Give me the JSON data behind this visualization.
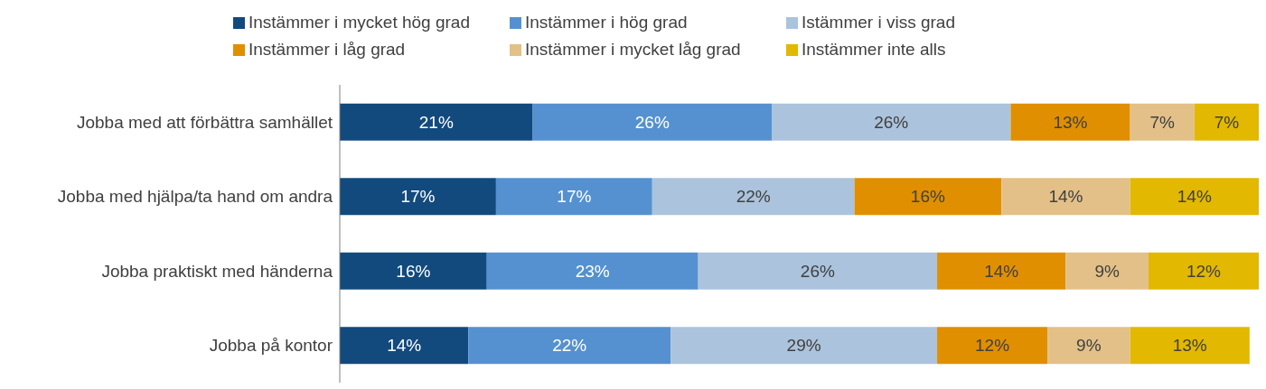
{
  "chart_data": {
    "type": "bar",
    "orientation": "horizontal",
    "stacked": true,
    "data_labels": true,
    "legend": "top",
    "tick_labels": "y",
    "categories": [
      "Jobba med att förbättra samhället",
      "Jobba med hjälpa/ta hand om andra",
      "Jobba praktiskt med händerna",
      "Jobba på kontor"
    ],
    "xlim": [
      0,
      100
    ],
    "series": [
      {
        "name": "Instämmer i mycket hög grad",
        "color": "#124a7e",
        "values": [
          21,
          17,
          16,
          14
        ],
        "value_labels": [
          "21%",
          "17%",
          "16%",
          "14%"
        ]
      },
      {
        "name": "Instämmer i hög grad",
        "color": "#5591d0",
        "values": [
          26,
          17,
          23,
          22
        ],
        "value_labels": [
          "26%",
          "17%",
          "23%",
          "22%"
        ]
      },
      {
        "name": "Istämmer i viss grad",
        "color": "#abc3dc",
        "values": [
          26,
          22,
          26,
          29
        ],
        "value_labels": [
          "26%",
          "22%",
          "26%",
          "29%"
        ]
      },
      {
        "name": "Instämmer i låg grad",
        "color": "#e08f00",
        "values": [
          13,
          16,
          14,
          12
        ],
        "value_labels": [
          "13%",
          "16%",
          "14%",
          "12%"
        ]
      },
      {
        "name": "Instämmer i mycket låg grad",
        "color": "#e2c088",
        "values": [
          7,
          14,
          9,
          9
        ],
        "value_labels": [
          "7%",
          "14%",
          "9%",
          "9%"
        ]
      },
      {
        "name": "Instämmer inte alls",
        "color": "#e2b800",
        "values": [
          7,
          14,
          12,
          13
        ],
        "value_labels": [
          "7%",
          "14%",
          "12%",
          "13%"
        ]
      }
    ]
  }
}
